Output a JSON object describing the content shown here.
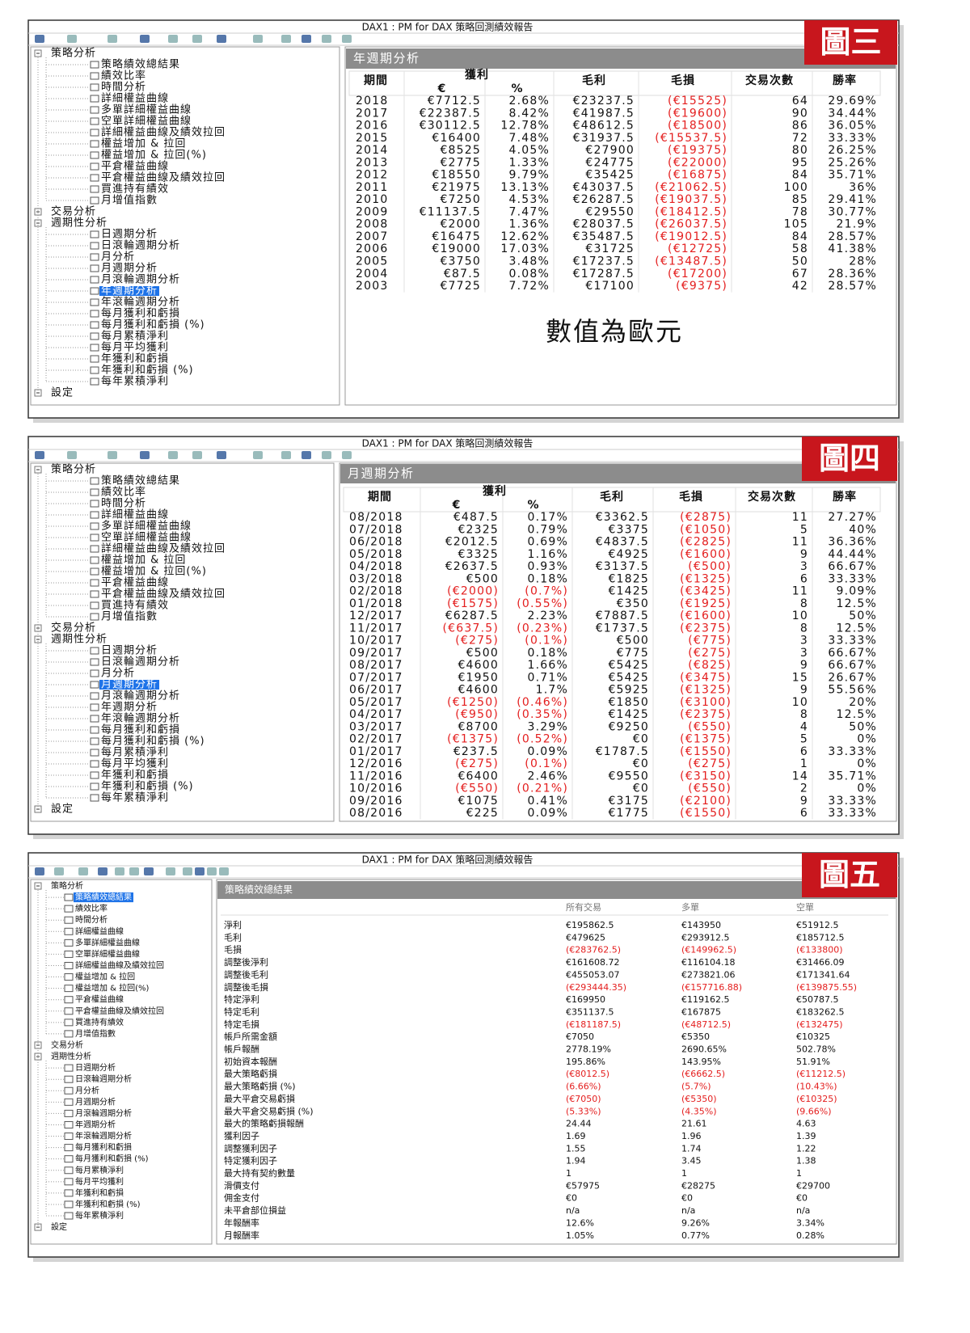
{
  "tree": [
    {
      "label": "策略分析",
      "children": [
        "策略績效總結果",
        "績效比率",
        "時間分析",
        "詳細權益曲線",
        "多單詳細權益曲線",
        "空單詳細權益曲線",
        "詳細權益曲線及績效拉回",
        "權益增加 & 拉回",
        "權益增加 & 拉回(%)",
        "平倉權益曲線",
        "平倉權益曲線及績效拉回",
        "買進持有績效",
        "月增值指數"
      ]
    },
    {
      "label": "交易分析"
    },
    {
      "label": "週期性分析",
      "children": [
        "日週期分析",
        "日滾輪週期分析",
        "月分析",
        "月週期分析",
        "月滾輪週期分析",
        "年週期分析",
        "年滾輪週期分析",
        "每月獲利和虧損",
        "每月獲利和虧損 (%)",
        "每月累積淨利",
        "每月平均獲利",
        "年獲利和虧損",
        "年獲利和虧損 (%)",
        "每年累積淨利"
      ]
    },
    {
      "label": "設定"
    }
  ],
  "panels": [
    {
      "badge": "圖三",
      "window_title": "DAX1 : PM for DAX 策略回測績效報告",
      "section_title": "年週期分析",
      "selected": [
        2,
        5
      ],
      "table": {
        "header": {
          "period": "期間",
          "profit": "獲利",
          "profit_eur": "€",
          "profit_pct": "%",
          "gross_profit": "毛利",
          "gross_loss": "毛損",
          "trades": "交易次數",
          "win_rate": "勝率"
        },
        "rows": [
          [
            "2018",
            "€7712.5",
            "2.68%",
            "€23237.5",
            "(€15525)",
            "64",
            "29.69%"
          ],
          [
            "2017",
            "€22387.5",
            "8.42%",
            "€41987.5",
            "(€19600)",
            "90",
            "34.44%"
          ],
          [
            "2016",
            "€30112.5",
            "12.78%",
            "€48612.5",
            "(€18500)",
            "86",
            "36.05%"
          ],
          [
            "2015",
            "€16400",
            "7.48%",
            "€31937.5",
            "(€15537.5)",
            "72",
            "33.33%"
          ],
          [
            "2014",
            "€8525",
            "4.05%",
            "€27900",
            "(€19375)",
            "80",
            "26.25%"
          ],
          [
            "2013",
            "€2775",
            "1.33%",
            "€24775",
            "(€22000)",
            "95",
            "25.26%"
          ],
          [
            "2012",
            "€18550",
            "9.79%",
            "€35425",
            "(€16875)",
            "84",
            "35.71%"
          ],
          [
            "2011",
            "€21975",
            "13.13%",
            "€43037.5",
            "(€21062.5)",
            "100",
            "36%"
          ],
          [
            "2010",
            "€7250",
            "4.53%",
            "€26287.5",
            "(€19037.5)",
            "85",
            "29.41%"
          ],
          [
            "2009",
            "€11137.5",
            "7.47%",
            "€29550",
            "(€18412.5)",
            "78",
            "30.77%"
          ],
          [
            "2008",
            "€2000",
            "1.36%",
            "€28037.5",
            "(€26037.5)",
            "105",
            "21.9%"
          ],
          [
            "2007",
            "€16475",
            "12.62%",
            "€35487.5",
            "(€19012.5)",
            "84",
            "28.57%"
          ],
          [
            "2006",
            "€19000",
            "17.03%",
            "€31725",
            "(€12725)",
            "58",
            "41.38%"
          ],
          [
            "2005",
            "€3750",
            "3.48%",
            "€17237.5",
            "(€13487.5)",
            "50",
            "28%"
          ],
          [
            "2004",
            "€87.5",
            "0.08%",
            "€17287.5",
            "(€17200)",
            "67",
            "28.36%"
          ],
          [
            "2003",
            "€7725",
            "7.72%",
            "€17100",
            "(€9375)",
            "42",
            "28.57%"
          ]
        ]
      },
      "note": "數值為歐元"
    },
    {
      "badge": "圖四",
      "window_title": "DAX1 : PM for DAX 策略回測績效報告",
      "section_title": "月週期分析",
      "selected": [
        2,
        3
      ],
      "table": {
        "header": {
          "period": "期間",
          "profit": "獲利",
          "profit_eur": "€",
          "profit_pct": "%",
          "gross_profit": "毛利",
          "gross_loss": "毛損",
          "trades": "交易次數",
          "win_rate": "勝率"
        },
        "rows": [
          [
            "08/2018",
            "€487.5",
            "0.17%",
            "€3362.5",
            "(€2875)",
            "11",
            "27.27%"
          ],
          [
            "07/2018",
            "€2325",
            "0.79%",
            "€3375",
            "(€1050)",
            "5",
            "40%"
          ],
          [
            "06/2018",
            "€2012.5",
            "0.69%",
            "€4837.5",
            "(€2825)",
            "11",
            "36.36%"
          ],
          [
            "05/2018",
            "€3325",
            "1.16%",
            "€4925",
            "(€1600)",
            "9",
            "44.44%"
          ],
          [
            "04/2018",
            "€2637.5",
            "0.93%",
            "€3137.5",
            "(€500)",
            "3",
            "66.67%"
          ],
          [
            "03/2018",
            "€500",
            "0.18%",
            "€1825",
            "(€1325)",
            "6",
            "33.33%"
          ],
          [
            "02/2018",
            "(€2000)",
            "(0.7%)",
            "€1425",
            "(€3425)",
            "11",
            "9.09%"
          ],
          [
            "01/2018",
            "(€1575)",
            "(0.55%)",
            "€350",
            "(€1925)",
            "8",
            "12.5%"
          ],
          [
            "12/2017",
            "€6287.5",
            "2.23%",
            "€7887.5",
            "(€1600)",
            "10",
            "50%"
          ],
          [
            "11/2017",
            "(€637.5)",
            "(0.23%)",
            "€1737.5",
            "(€2375)",
            "8",
            "12.5%"
          ],
          [
            "10/2017",
            "(€275)",
            "(0.1%)",
            "€500",
            "(€775)",
            "3",
            "33.33%"
          ],
          [
            "09/2017",
            "€500",
            "0.18%",
            "€775",
            "(€275)",
            "3",
            "66.67%"
          ],
          [
            "08/2017",
            "€4600",
            "1.66%",
            "€5425",
            "(€825)",
            "9",
            "66.67%"
          ],
          [
            "07/2017",
            "€1950",
            "0.71%",
            "€5425",
            "(€3475)",
            "15",
            "26.67%"
          ],
          [
            "06/2017",
            "€4600",
            "1.7%",
            "€5925",
            "(€1325)",
            "9",
            "55.56%"
          ],
          [
            "05/2017",
            "(€1250)",
            "(0.46%)",
            "€1850",
            "(€3100)",
            "10",
            "20%"
          ],
          [
            "04/2017",
            "(€950)",
            "(0.35%)",
            "€1425",
            "(€2375)",
            "8",
            "12.5%"
          ],
          [
            "03/2017",
            "€8700",
            "3.29%",
            "€9250",
            "(€550)",
            "4",
            "50%"
          ],
          [
            "02/2017",
            "(€1375)",
            "(0.52%)",
            "€0",
            "(€1375)",
            "5",
            "0%"
          ],
          [
            "01/2017",
            "€237.5",
            "0.09%",
            "€1787.5",
            "(€1550)",
            "6",
            "33.33%"
          ],
          [
            "12/2016",
            "(€275)",
            "(0.1%)",
            "€0",
            "(€275)",
            "1",
            "0%"
          ],
          [
            "11/2016",
            "€6400",
            "2.46%",
            "€9550",
            "(€3150)",
            "14",
            "35.71%"
          ],
          [
            "10/2016",
            "(€550)",
            "(0.21%)",
            "€0",
            "(€550)",
            "2",
            "0%"
          ],
          [
            "09/2016",
            "€1075",
            "0.41%",
            "€3175",
            "(€2100)",
            "9",
            "33.33%"
          ],
          [
            "08/2016",
            "€225",
            "0.09%",
            "€1775",
            "(€1550)",
            "6",
            "33.33%"
          ]
        ]
      }
    },
    {
      "badge": "圖五",
      "window_title": "DAX1 : PM for DAX 策略回測績效報告",
      "section_title": "策略績效總結果",
      "selected": [
        0,
        0
      ],
      "table": {
        "columns": [
          "所有交易",
          "多單",
          "空單"
        ],
        "rows": [
          [
            "淨利",
            "€195862.5",
            "€143950",
            "€51912.5"
          ],
          [
            "毛利",
            "€479625",
            "€293912.5",
            "€185712.5"
          ],
          [
            "毛損",
            "(€283762.5)",
            "(€149962.5)",
            "(€133800)"
          ],
          [
            "調整後淨利",
            "€161608.72",
            "€116104.18",
            "€31466.09"
          ],
          [
            "調整後毛利",
            "€455053.07",
            "€273821.06",
            "€171341.64"
          ],
          [
            "調整後毛損",
            "(€293444.35)",
            "(€157716.88)",
            "(€139875.55)"
          ],
          [
            "特定淨利",
            "€169950",
            "€119162.5",
            "€50787.5"
          ],
          [
            "特定毛利",
            "€351137.5",
            "€167875",
            "€183262.5"
          ],
          [
            "特定毛損",
            "(€181187.5)",
            "(€48712.5)",
            "(€132475)"
          ],
          [
            "帳戶所需金額",
            "€7050",
            "€5350",
            "€10325"
          ],
          [
            "帳戶報酬",
            "2778.19%",
            "2690.65%",
            "502.78%"
          ],
          [
            "初始資本報酬",
            "195.86%",
            "143.95%",
            "51.91%"
          ],
          [
            "最大策略虧損",
            "(€8012.5)",
            "(€6662.5)",
            "(€11212.5)"
          ],
          [
            "最大策略虧損 (%)",
            "(6.66%)",
            "(5.7%)",
            "(10.43%)"
          ],
          [
            "最大平倉交易虧損",
            "(€7050)",
            "(€5350)",
            "(€10325)"
          ],
          [
            "最大平倉交易虧損 (%)",
            "(5.33%)",
            "(4.35%)",
            "(9.66%)"
          ],
          [
            "最大的策略虧損報酬",
            "24.44",
            "21.61",
            "4.63"
          ],
          [
            "獲利因子",
            "1.69",
            "1.96",
            "1.39"
          ],
          [
            "調整獲利因子",
            "1.55",
            "1.74",
            "1.22"
          ],
          [
            "特定獲利因子",
            "1.94",
            "3.45",
            "1.38"
          ],
          [
            "最大持有契約數量",
            "1",
            "1",
            "1"
          ],
          [
            "滑價支付",
            "€57975",
            "€28275",
            "€29700"
          ],
          [
            "佣金支付",
            "€0",
            "€0",
            "€0"
          ],
          [
            "未平倉部位損益",
            "n/a",
            "n/a",
            "n/a"
          ],
          [
            "年報酬率",
            "12.6%",
            "9.26%",
            "3.34%"
          ],
          [
            "月報酬率",
            "1.05%",
            "0.77%",
            "0.28%"
          ]
        ]
      }
    }
  ]
}
